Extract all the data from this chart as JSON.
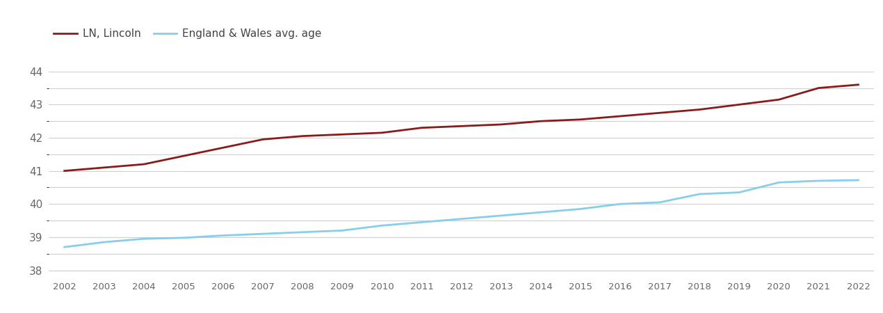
{
  "years": [
    2002,
    2003,
    2004,
    2005,
    2006,
    2007,
    2008,
    2009,
    2010,
    2011,
    2012,
    2013,
    2014,
    2015,
    2016,
    2017,
    2018,
    2019,
    2020,
    2021,
    2022
  ],
  "ln_lincoln": [
    41.0,
    41.1,
    41.2,
    41.45,
    41.7,
    41.95,
    42.05,
    42.1,
    42.15,
    42.3,
    42.35,
    42.4,
    42.5,
    42.55,
    42.65,
    42.75,
    42.85,
    43.0,
    43.15,
    43.5,
    43.6
  ],
  "ew_avg": [
    38.7,
    38.85,
    38.95,
    38.98,
    39.05,
    39.1,
    39.15,
    39.2,
    39.35,
    39.45,
    39.55,
    39.65,
    39.75,
    39.85,
    40.0,
    40.05,
    40.3,
    40.35,
    40.65,
    40.7,
    40.72
  ],
  "ln_color": "#8B1A1A",
  "ew_color": "#87CEEB",
  "ln_label": "LN, Lincoln",
  "ew_label": "England & Wales avg. age",
  "ylim": [
    37.75,
    44.55
  ],
  "yticks": [
    38,
    39,
    40,
    41,
    42,
    43,
    44
  ],
  "yticks_minor": [
    38.5,
    39.5,
    40.5,
    41.5,
    42.5,
    43.5
  ],
  "xlim": [
    2001.6,
    2022.4
  ],
  "bg_color": "#ffffff",
  "grid_color": "#d0d0d0",
  "tick_color": "#666666",
  "line_width": 2.0
}
